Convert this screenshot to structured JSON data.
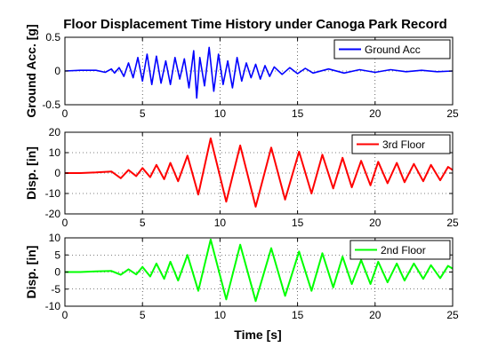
{
  "figure": {
    "title": "Floor Displacement Time History under Canoga Park Record",
    "xlabel": "Time [s]"
  },
  "chart_data": [
    {
      "type": "line",
      "ylabel": "Ground Acc. [g]",
      "xlim": [
        0,
        25
      ],
      "ylim": [
        -0.5,
        0.5
      ],
      "xticks": [
        "0",
        "5",
        "10",
        "15",
        "20",
        "25"
      ],
      "yticks": [
        "-0.5",
        "0",
        "0.5"
      ],
      "grid": true,
      "legend_position": "top-right",
      "series": [
        {
          "name": "Ground Acc",
          "color": "#0000ff",
          "x": [
            0,
            1,
            2,
            2.6,
            3,
            3.2,
            3.5,
            3.8,
            4.1,
            4.4,
            4.7,
            5.0,
            5.3,
            5.6,
            5.9,
            6.2,
            6.5,
            6.8,
            7.1,
            7.4,
            7.7,
            8.0,
            8.3,
            8.5,
            8.7,
            9.0,
            9.3,
            9.6,
            9.9,
            10.2,
            10.5,
            10.8,
            11.1,
            11.4,
            11.7,
            12.0,
            12.3,
            12.6,
            12.9,
            13.2,
            13.5,
            14.0,
            14.5,
            15.0,
            15.5,
            16.0,
            17.0,
            18.0,
            19.0,
            20.0,
            21.0,
            22.0,
            23.0,
            24.0,
            25.0
          ],
          "y": [
            0,
            0.01,
            0.01,
            -0.02,
            0.03,
            -0.03,
            0.05,
            -0.08,
            0.12,
            -0.1,
            0.2,
            -0.15,
            0.25,
            -0.2,
            0.22,
            -0.18,
            0.15,
            -0.2,
            0.2,
            -0.12,
            0.18,
            -0.25,
            0.3,
            -0.4,
            0.2,
            -0.22,
            0.35,
            -0.3,
            0.25,
            -0.2,
            0.15,
            -0.25,
            0.2,
            -0.15,
            0.12,
            -0.1,
            0.1,
            -0.12,
            0.08,
            -0.08,
            0.06,
            -0.05,
            0.05,
            -0.04,
            0.04,
            -0.03,
            0.03,
            -0.03,
            0.02,
            -0.02,
            0.02,
            -0.01,
            0.01,
            -0.01,
            0.0
          ]
        }
      ]
    },
    {
      "type": "line",
      "ylabel": "Disp. [in]",
      "xlim": [
        0,
        25
      ],
      "ylim": [
        -20,
        20
      ],
      "xticks": [
        "0",
        "5",
        "10",
        "15",
        "20",
        "25"
      ],
      "yticks": [
        "-20",
        "-10",
        "0",
        "10",
        "20"
      ],
      "grid": true,
      "legend_position": "top-right",
      "series": [
        {
          "name": "3rd Floor",
          "color": "#ff0000",
          "x": [
            0,
            1,
            2,
            3,
            3.6,
            4.1,
            4.6,
            5.0,
            5.5,
            5.9,
            6.4,
            6.8,
            7.3,
            7.9,
            8.6,
            9.4,
            10.4,
            11.3,
            12.3,
            13.3,
            14.2,
            15.1,
            15.9,
            16.6,
            17.3,
            17.9,
            18.5,
            19.1,
            19.7,
            20.2,
            20.8,
            21.4,
            21.9,
            22.5,
            23.1,
            23.6,
            24.2,
            24.7,
            25.0
          ],
          "y": [
            0,
            0,
            0.3,
            0.8,
            -2.5,
            1.5,
            -1.5,
            2.5,
            -2,
            4,
            -3,
            5,
            -4,
            8.5,
            -10.5,
            17,
            -14,
            13.5,
            -16.5,
            12.5,
            -13,
            10.5,
            -10,
            9,
            -7.5,
            7.5,
            -7,
            6,
            -6,
            5.5,
            -5,
            5,
            -4.5,
            4.5,
            -4,
            4,
            -3.5,
            3,
            1.5
          ]
        }
      ]
    },
    {
      "type": "line",
      "ylabel": "Disp. [in]",
      "xlim": [
        0,
        25
      ],
      "ylim": [
        -10,
        10
      ],
      "xticks": [
        "0",
        "5",
        "10",
        "15",
        "20",
        "25"
      ],
      "yticks": [
        "-10",
        "-5",
        "0",
        "5",
        "10"
      ],
      "grid": true,
      "legend_position": "top-right",
      "series": [
        {
          "name": "2nd Floor",
          "color": "#00ff00",
          "x": [
            0,
            1,
            2,
            3,
            3.6,
            4.1,
            4.6,
            5.0,
            5.5,
            5.9,
            6.4,
            6.8,
            7.3,
            7.9,
            8.6,
            9.4,
            10.4,
            11.3,
            12.3,
            13.3,
            14.2,
            15.1,
            15.9,
            16.6,
            17.3,
            17.9,
            18.5,
            19.1,
            19.7,
            20.2,
            20.8,
            21.4,
            21.9,
            22.5,
            23.1,
            23.6,
            24.2,
            24.7,
            25.0
          ],
          "y": [
            0,
            0,
            0.2,
            0.3,
            -0.8,
            0.8,
            -0.7,
            1.5,
            -1.3,
            2.5,
            -2,
            3,
            -2.5,
            5,
            -5.5,
            9.5,
            -8,
            8,
            -8.5,
            7,
            -7,
            6,
            -5.5,
            5.5,
            -4.5,
            4.5,
            -3.5,
            3.5,
            -3.5,
            3,
            -3,
            2.5,
            -2.5,
            2.5,
            -2,
            2,
            -1.8,
            1.8,
            1
          ]
        }
      ]
    }
  ]
}
